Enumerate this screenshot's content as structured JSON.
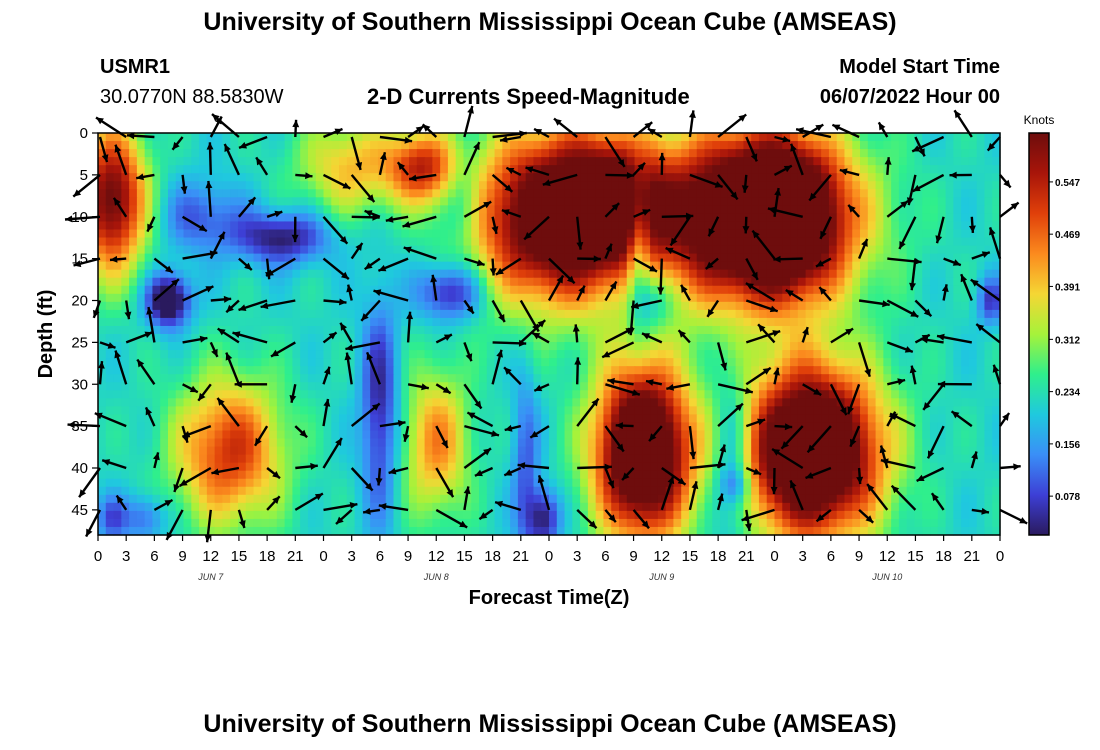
{
  "header": {
    "title": "University of Southern Mississippi Ocean Cube (AMSEAS)",
    "station": "USMR1",
    "coords": "30.0770N  88.5830W",
    "plot_title": "2-D Currents Speed-Magnitude",
    "model_label": "Model Start Time",
    "model_time": "06/07/2022 Hour 00"
  },
  "footer": {
    "title": "University of Southern Mississippi Ocean Cube (AMSEAS)"
  },
  "chart_data": {
    "type": "heatmap",
    "title": "2-D Currents Speed-Magnitude",
    "xlabel": "Forecast Time(Z)",
    "ylabel": "Depth (ft)",
    "x_ticks": [
      "0",
      "3",
      "6",
      "9",
      "12",
      "15",
      "18",
      "21",
      "0",
      "3",
      "6",
      "9",
      "12",
      "15",
      "18",
      "21",
      "0",
      "3",
      "6",
      "9",
      "12",
      "15",
      "18",
      "21",
      "0",
      "3",
      "6",
      "9",
      "12",
      "15",
      "18",
      "21",
      "0"
    ],
    "date_labels": [
      {
        "label": "JUN 7",
        "hour": 12
      },
      {
        "label": "JUN 8",
        "hour": 36
      },
      {
        "label": "JUN 9",
        "hour": 60
      },
      {
        "label": "JUN 10",
        "hour": 84
      }
    ],
    "xlim_hours": [
      0,
      96
    ],
    "y_ticks": [
      0,
      5,
      10,
      15,
      20,
      25,
      30,
      35,
      40,
      45
    ],
    "ylim": [
      0,
      48
    ],
    "colorbar": {
      "unit": "Knots",
      "ticks": [
        0.078,
        0.156,
        0.234,
        0.312,
        0.391,
        0.469,
        0.547
      ],
      "range": [
        0.02,
        0.62
      ],
      "colors": [
        "#2a1a5e",
        "#3d3fd6",
        "#3a8ff7",
        "#1fc9de",
        "#2fef8c",
        "#a6f23a",
        "#f5d634",
        "#fb8a1e",
        "#e0400a",
        "#a8150a",
        "#6e0d0d"
      ]
    },
    "blobs": [
      {
        "t": 1.5,
        "d": 8,
        "st": 2.5,
        "sd": 6,
        "a": 0.42
      },
      {
        "t": 14,
        "d": 38,
        "st": 4,
        "sd": 6,
        "a": 0.3
      },
      {
        "t": 7.5,
        "d": 20,
        "st": 1.6,
        "sd": 2.2,
        "a": -0.28
      },
      {
        "t": 11,
        "d": 10,
        "st": 3,
        "sd": 3,
        "a": -0.12
      },
      {
        "t": 19.5,
        "d": 12.5,
        "st": 3.5,
        "sd": 2.2,
        "a": -0.2
      },
      {
        "t": 27,
        "d": 4,
        "st": 4,
        "sd": 4,
        "a": 0.18
      },
      {
        "t": 34.5,
        "d": 4,
        "st": 2.5,
        "sd": 3,
        "a": 0.28
      },
      {
        "t": 30,
        "d": 33,
        "st": 1.4,
        "sd": 9,
        "a": -0.18
      },
      {
        "t": 36,
        "d": 37,
        "st": 2.5,
        "sd": 6,
        "a": 0.22
      },
      {
        "t": 37.5,
        "d": 19,
        "st": 2.4,
        "sd": 2.4,
        "a": -0.2
      },
      {
        "t": 39,
        "d": 8,
        "st": 1.4,
        "sd": 4,
        "a": -0.1
      },
      {
        "t": 49,
        "d": 10,
        "st": 6,
        "sd": 7,
        "a": 0.55
      },
      {
        "t": 55.5,
        "d": 8,
        "st": 3.5,
        "sd": 5,
        "a": 0.25
      },
      {
        "t": 57.5,
        "d": 13,
        "st": 0.9,
        "sd": 6,
        "a": -0.18
      },
      {
        "t": 59,
        "d": 20,
        "st": 1.5,
        "sd": 2.5,
        "a": -0.12
      },
      {
        "t": 70,
        "d": 10,
        "st": 7,
        "sd": 7,
        "a": 0.65
      },
      {
        "t": 73.5,
        "d": 10,
        "st": 3.5,
        "sd": 6,
        "a": 0.2
      },
      {
        "t": 58,
        "d": 38,
        "st": 3.5,
        "sd": 7,
        "a": 0.62
      },
      {
        "t": 76,
        "d": 38,
        "st": 5,
        "sd": 7,
        "a": 0.64
      },
      {
        "t": 67.5,
        "d": 39,
        "st": 1.5,
        "sd": 7,
        "a": -0.15
      },
      {
        "t": 68,
        "d": 42,
        "st": 1.2,
        "sd": 1.5,
        "a": -0.1
      },
      {
        "t": 47.5,
        "d": 46,
        "st": 1.2,
        "sd": 2.5,
        "a": -0.2
      },
      {
        "t": 5,
        "d": 46,
        "st": 1.5,
        "sd": 2,
        "a": -0.12
      },
      {
        "t": 1.5,
        "d": 46,
        "st": 1.2,
        "sd": 2,
        "a": -0.12
      },
      {
        "t": 45.5,
        "d": 40,
        "st": 1,
        "sd": 8,
        "a": -0.12
      },
      {
        "t": 95,
        "d": 20,
        "st": 1,
        "sd": 2,
        "a": -0.15
      }
    ],
    "vector_times": [
      0,
      3,
      6,
      9,
      12,
      15,
      18,
      21,
      24,
      27,
      30,
      33,
      36,
      39,
      42,
      45,
      48,
      51,
      54,
      57,
      60,
      63,
      66,
      69,
      72,
      75,
      78,
      81,
      84,
      87,
      90,
      93,
      96
    ],
    "vector_depths": [
      0,
      5,
      10,
      15,
      20,
      25,
      30,
      35,
      40,
      45
    ]
  }
}
